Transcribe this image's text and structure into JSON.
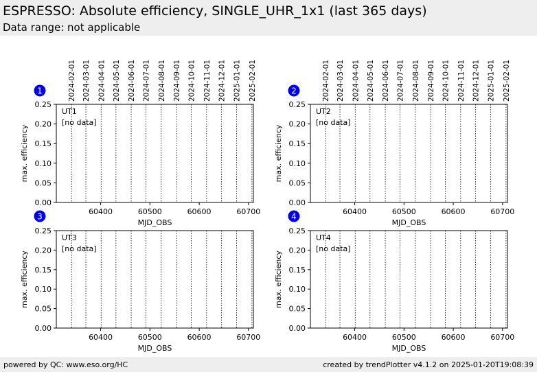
{
  "header": {
    "title": "ESPRESSO: Absolute efficiency, SINGLE_UHR_1x1 (last 365 days)",
    "subtitle": "Data range: not applicable"
  },
  "footer": {
    "left": "powered by QC: www.eso.org/HC",
    "right": "created by trendPlotter v4.1.2 on 2025-01-20T19:08:39"
  },
  "colors": {
    "badge": "#0000ee",
    "header_bg": "#eeeeee"
  },
  "chart_data": [
    {
      "type": "line",
      "badge": "1",
      "label": "UT1",
      "status": "[no data]",
      "xlabel": "MJD_OBS",
      "ylabel": "max. efficiency",
      "xlim": [
        60310,
        60710
      ],
      "ylim": [
        0,
        0.25
      ],
      "xticks": [
        60400,
        60500,
        60600,
        60700
      ],
      "yticks": [
        "0.00",
        "0.05",
        "0.10",
        "0.15",
        "0.20",
        "0.25"
      ],
      "date_markers": [
        {
          "mjd": 60341,
          "label": "2024-02-01"
        },
        {
          "mjd": 60370,
          "label": "2024-03-01"
        },
        {
          "mjd": 60401,
          "label": "2024-04-01"
        },
        {
          "mjd": 60431,
          "label": "2024-05-01"
        },
        {
          "mjd": 60462,
          "label": "2024-06-01"
        },
        {
          "mjd": 60492,
          "label": "2024-07-01"
        },
        {
          "mjd": 60523,
          "label": "2024-08-01"
        },
        {
          "mjd": 60554,
          "label": "2024-09-01"
        },
        {
          "mjd": 60584,
          "label": "2024-10-01"
        },
        {
          "mjd": 60615,
          "label": "2024-11-01"
        },
        {
          "mjd": 60645,
          "label": "2024-12-01"
        },
        {
          "mjd": 60676,
          "label": "2025-01-01"
        },
        {
          "mjd": 60707,
          "label": "2025-02-01"
        }
      ],
      "series": []
    },
    {
      "type": "line",
      "badge": "2",
      "label": "UT2",
      "status": "[no data]",
      "xlabel": "MJD_OBS",
      "ylabel": "max. efficiency",
      "xlim": [
        60310,
        60710
      ],
      "ylim": [
        0,
        0.25
      ],
      "xticks": [
        60400,
        60500,
        60600,
        60700
      ],
      "yticks": [
        "0.00",
        "0.05",
        "0.10",
        "0.15",
        "0.20",
        "0.25"
      ],
      "date_markers": [
        {
          "mjd": 60341,
          "label": "2024-02-01"
        },
        {
          "mjd": 60370,
          "label": "2024-03-01"
        },
        {
          "mjd": 60401,
          "label": "2024-04-01"
        },
        {
          "mjd": 60431,
          "label": "2024-05-01"
        },
        {
          "mjd": 60462,
          "label": "2024-06-01"
        },
        {
          "mjd": 60492,
          "label": "2024-07-01"
        },
        {
          "mjd": 60523,
          "label": "2024-08-01"
        },
        {
          "mjd": 60554,
          "label": "2024-09-01"
        },
        {
          "mjd": 60584,
          "label": "2024-10-01"
        },
        {
          "mjd": 60615,
          "label": "2024-11-01"
        },
        {
          "mjd": 60645,
          "label": "2024-12-01"
        },
        {
          "mjd": 60676,
          "label": "2025-01-01"
        },
        {
          "mjd": 60707,
          "label": "2025-02-01"
        }
      ],
      "series": []
    },
    {
      "type": "line",
      "badge": "3",
      "label": "UT3",
      "status": "[no data]",
      "xlabel": "MJD_OBS",
      "ylabel": "max. efficiency",
      "xlim": [
        60310,
        60710
      ],
      "ylim": [
        0,
        0.25
      ],
      "xticks": [
        60400,
        60500,
        60600,
        60700
      ],
      "yticks": [
        "0.00",
        "0.05",
        "0.10",
        "0.15",
        "0.20",
        "0.25"
      ],
      "date_markers": [
        {
          "mjd": 60341,
          "label": ""
        },
        {
          "mjd": 60370,
          "label": ""
        },
        {
          "mjd": 60401,
          "label": ""
        },
        {
          "mjd": 60431,
          "label": ""
        },
        {
          "mjd": 60462,
          "label": ""
        },
        {
          "mjd": 60492,
          "label": ""
        },
        {
          "mjd": 60523,
          "label": ""
        },
        {
          "mjd": 60554,
          "label": ""
        },
        {
          "mjd": 60584,
          "label": ""
        },
        {
          "mjd": 60615,
          "label": ""
        },
        {
          "mjd": 60645,
          "label": ""
        },
        {
          "mjd": 60676,
          "label": ""
        },
        {
          "mjd": 60707,
          "label": ""
        }
      ],
      "series": []
    },
    {
      "type": "line",
      "badge": "4",
      "label": "UT4",
      "status": "[no data]",
      "xlabel": "MJD_OBS",
      "ylabel": "max. efficiency",
      "xlim": [
        60310,
        60710
      ],
      "ylim": [
        0,
        0.25
      ],
      "xticks": [
        60400,
        60500,
        60600,
        60700
      ],
      "yticks": [
        "0.00",
        "0.05",
        "0.10",
        "0.15",
        "0.20",
        "0.25"
      ],
      "date_markers": [
        {
          "mjd": 60341,
          "label": ""
        },
        {
          "mjd": 60370,
          "label": ""
        },
        {
          "mjd": 60401,
          "label": ""
        },
        {
          "mjd": 60431,
          "label": ""
        },
        {
          "mjd": 60462,
          "label": ""
        },
        {
          "mjd": 60492,
          "label": ""
        },
        {
          "mjd": 60523,
          "label": ""
        },
        {
          "mjd": 60554,
          "label": ""
        },
        {
          "mjd": 60584,
          "label": ""
        },
        {
          "mjd": 60615,
          "label": ""
        },
        {
          "mjd": 60645,
          "label": ""
        },
        {
          "mjd": 60676,
          "label": ""
        },
        {
          "mjd": 60707,
          "label": ""
        }
      ],
      "series": []
    }
  ]
}
